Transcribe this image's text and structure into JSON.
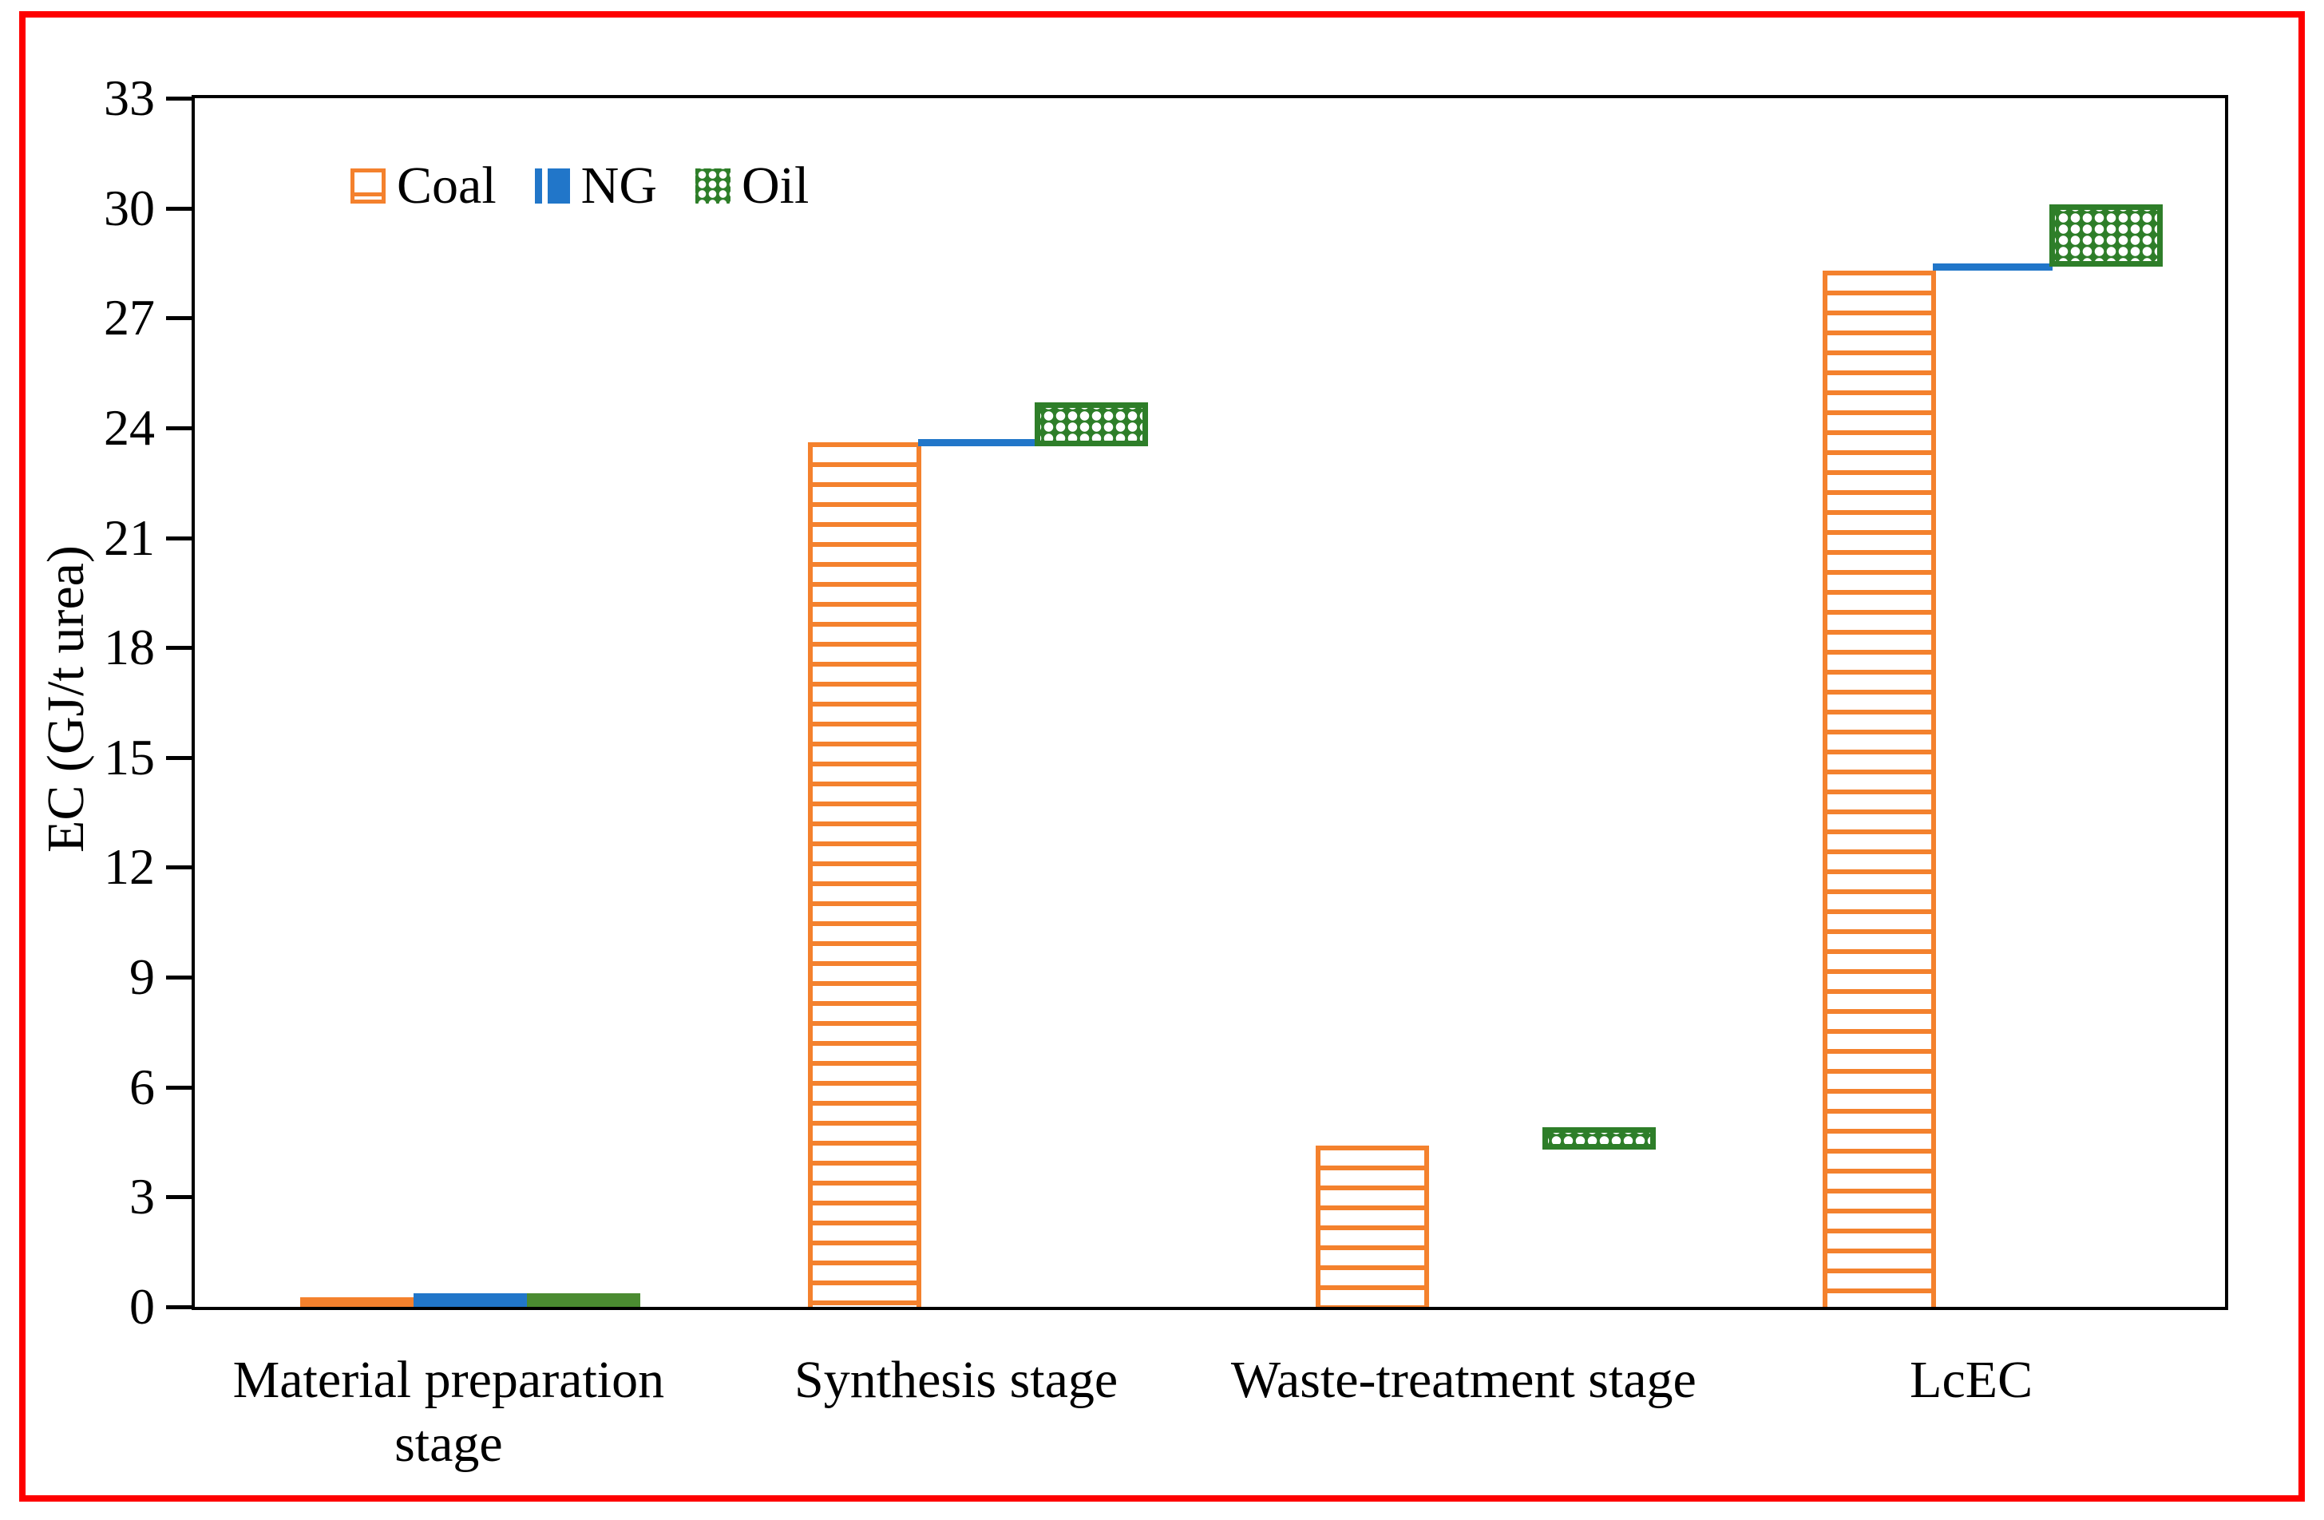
{
  "figure": {
    "frame_color": "#fe0000",
    "background": "#ffffff",
    "axis_color": "#000000"
  },
  "chart_data": {
    "type": "bar",
    "title": "",
    "xlabel": "",
    "ylabel": "EC (GJ/t urea)",
    "ylim": [
      0,
      33
    ],
    "ytick_step": 3,
    "yticks": [
      0,
      3,
      6,
      9,
      12,
      15,
      18,
      21,
      24,
      27,
      30,
      33
    ],
    "grid": false,
    "legend_position": "top-left-inside",
    "categories": [
      "Material preparation stage",
      "Synthesis stage",
      "Waste-treatment stage",
      "LcEC"
    ],
    "category_lines": [
      [
        "Material preparation",
        "stage"
      ],
      [
        "Synthesis stage"
      ],
      [
        "Waste-treatment stage"
      ],
      [
        "LcEC"
      ]
    ],
    "series": [
      {
        "name": "Coal",
        "color": "#f4812d",
        "pattern": "horizontal-stripes",
        "values": [
          0.26,
          23.6,
          4.4,
          28.3
        ],
        "render": [
          "outline-bar",
          "striped-bar",
          "striped-bar",
          "striped-bar"
        ]
      },
      {
        "name": "NG",
        "color": "#2176c9",
        "pattern": "vertical-stripes",
        "values": [
          0.37,
          23.6,
          null,
          28.4
        ],
        "render": [
          "solid-bar",
          "top-line",
          "none",
          "top-line"
        ]
      },
      {
        "name": "Oil",
        "color": "#2e7e29",
        "pattern": "dots",
        "values": [
          0.37,
          24.7,
          4.9,
          30.1
        ],
        "ranges": [
          [
            0,
            0.37
          ],
          [
            23.5,
            24.7
          ],
          [
            4.3,
            4.9
          ],
          [
            28.4,
            30.1
          ]
        ],
        "render": [
          "solid-bar",
          "range-block",
          "range-block",
          "range-block"
        ]
      }
    ]
  }
}
